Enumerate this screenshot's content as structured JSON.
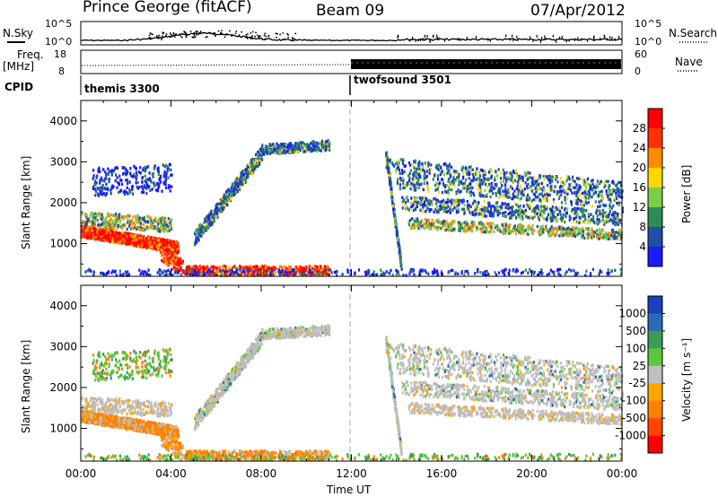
{
  "header": {
    "station": "Prince George (fitACF)",
    "beam": "Beam 09",
    "date": "07/Apr/2012"
  },
  "top_panels": {
    "nsky_label": "N.Sky",
    "nsearch_label": "N.Search",
    "noise_ticks_left": [
      "10^5",
      "10^0"
    ],
    "noise_ticks_right": [
      "10^5",
      "10^0"
    ],
    "freq_label_1": "Freq.",
    "freq_label_2": "[MHz]",
    "freq_ticks": [
      "18",
      "8"
    ],
    "nave_label": "Nave",
    "nave_ticks": [
      "60",
      "0"
    ],
    "cpid_label": "CPID",
    "cpid_segments": [
      "themis 3300",
      "twofsound 3501"
    ]
  },
  "colors": {
    "power_scale": [
      "#1a1aff",
      "#1f4fa8",
      "#2e8b57",
      "#7ccd4a",
      "#ffd700",
      "#ff8c00",
      "#ff3300",
      "#ff0000"
    ],
    "velocity_scale": [
      "#1a3fbf",
      "#2a6bb5",
      "#3d9a5a",
      "#5ac83a",
      "#c0c0c0",
      "#ffa500",
      "#ff7f00",
      "#ff4500",
      "#ff0000"
    ],
    "ground_scatter": "#bdbdbd"
  },
  "chart_data": [
    {
      "type": "heatmap",
      "panel": "power",
      "ylabel": "Slant Range [km]",
      "yticks": [
        "1000",
        "2000",
        "3000",
        "4000"
      ],
      "ylim": [
        200,
        4500
      ],
      "xlim": [
        0,
        24
      ],
      "colorbar_label": "Power [dB]",
      "colorbar_ticks": [
        "4",
        "8",
        "12",
        "16",
        "20",
        "24",
        "28"
      ]
    },
    {
      "type": "heatmap",
      "panel": "velocity",
      "ylabel": "Slant Range [km]",
      "yticks": [
        "1000",
        "2000",
        "3000",
        "4000"
      ],
      "ylim": [
        200,
        4500
      ],
      "xlim": [
        0,
        24
      ],
      "colorbar_label": "Velocity [m s⁻¹]",
      "colorbar_ticks": [
        "1000",
        "500",
        "100",
        "25",
        "-25",
        "-100",
        "-500",
        "-1000"
      ]
    }
  ],
  "xaxis": {
    "ticks": [
      "00:00",
      "04:00",
      "08:00",
      "12:00",
      "16:00",
      "20:00",
      "00:00"
    ],
    "label": "Time UT"
  }
}
